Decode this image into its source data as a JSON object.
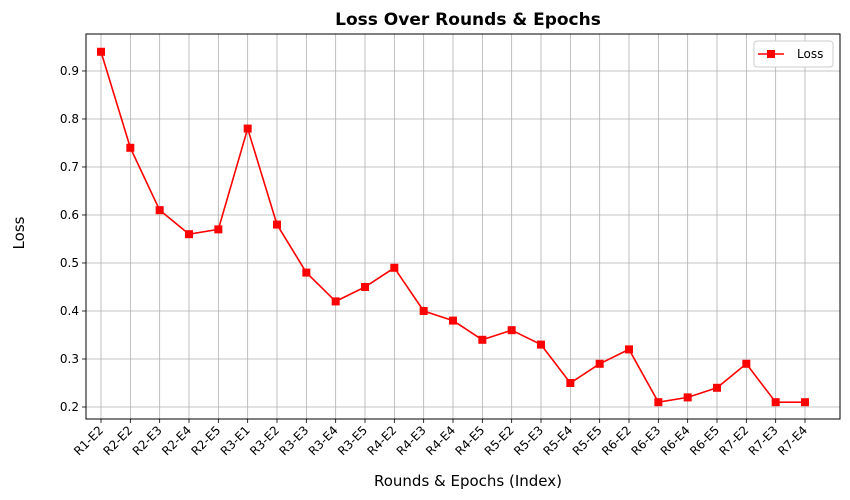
{
  "chart_data": {
    "type": "line",
    "title": "Loss Over Rounds & Epochs",
    "xlabel": "Rounds & Epochs (Index)",
    "ylabel": "Loss",
    "categories": [
      "R1-E2",
      "R2-E2",
      "R2-E3",
      "R2-E4",
      "R2-E5",
      "R3-E1",
      "R3-E2",
      "R3-E3",
      "R3-E4",
      "R3-E5",
      "R4-E2",
      "R4-E3",
      "R4-E4",
      "R4-E5",
      "R5-E2",
      "R5-E3",
      "R5-E4",
      "R5-E5",
      "R6-E2",
      "R6-E3",
      "R6-E4",
      "R6-E5",
      "R7-E2",
      "R7-E3",
      "R7-E4"
    ],
    "series": [
      {
        "name": "Loss",
        "color": "#ff0000",
        "marker": "square",
        "values": [
          0.94,
          0.74,
          0.61,
          0.56,
          0.57,
          0.78,
          0.58,
          0.48,
          0.42,
          0.45,
          0.49,
          0.4,
          0.38,
          0.34,
          0.36,
          0.33,
          0.25,
          0.29,
          0.32,
          0.21,
          0.22,
          0.24,
          0.29,
          0.21,
          0.21
        ]
      }
    ],
    "yticks": [
      "0.2",
      "0.3",
      "0.4",
      "0.5",
      "0.6",
      "0.7",
      "0.8",
      "0.9"
    ],
    "ylim": [
      0.175,
      0.977
    ],
    "grid": true,
    "legend_position": "top-right"
  }
}
